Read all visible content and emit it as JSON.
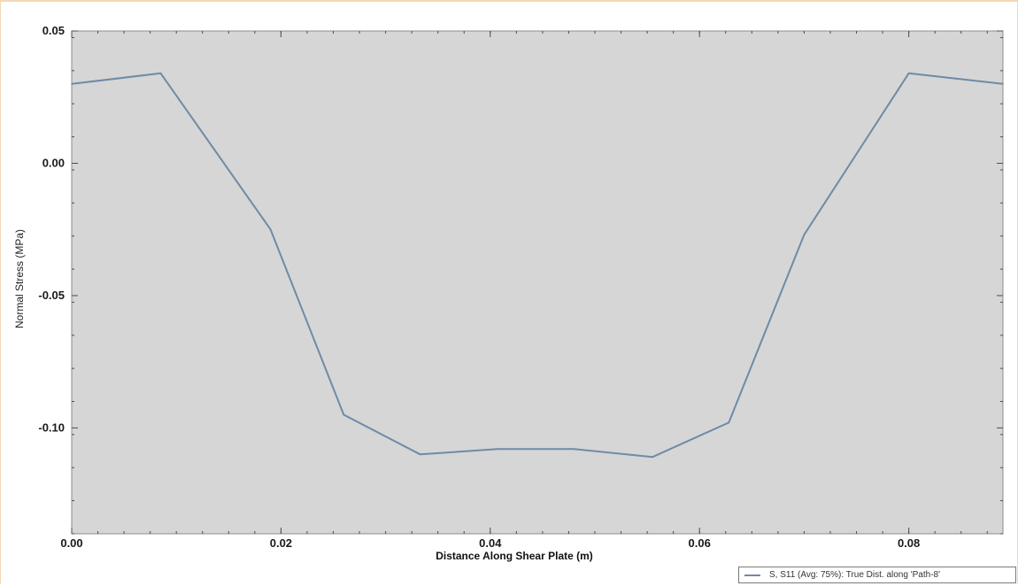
{
  "chart_data": {
    "type": "line",
    "title": "",
    "xlabel": "Distance Along Shear Plate (m)",
    "ylabel": "Normal Stress (MPa)",
    "xlim": [
      0.0,
      0.089
    ],
    "ylim": [
      -0.14,
      0.05
    ],
    "xticks": [
      0.0,
      0.02,
      0.04,
      0.06,
      0.08
    ],
    "xtick_labels": [
      "0.00",
      "0.02",
      "0.04",
      "0.06",
      "0.08"
    ],
    "yticks": [
      0.05,
      0.0,
      -0.05,
      -0.1
    ],
    "ytick_labels": [
      "0.05",
      "0.00",
      "-0.05",
      "-0.10"
    ],
    "grid": false,
    "background": "#d6d6d6",
    "legend_position": "bottom-right",
    "series": [
      {
        "name": "S, S11 (Avg: 75%): True Dist. along 'Path-8'",
        "color": "#6f8aa6",
        "x": [
          0.0,
          0.0085,
          0.019,
          0.026,
          0.0333,
          0.0407,
          0.048,
          0.0555,
          0.0628,
          0.07,
          0.08,
          0.089
        ],
        "y": [
          0.03,
          0.034,
          -0.025,
          -0.095,
          -0.11,
          -0.108,
          -0.108,
          -0.111,
          -0.098,
          -0.027,
          0.034,
          0.03
        ]
      }
    ]
  }
}
